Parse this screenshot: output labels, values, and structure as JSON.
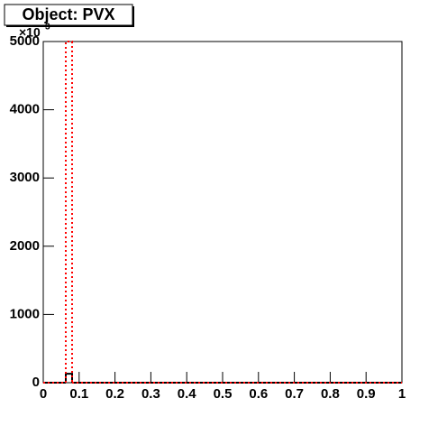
{
  "chart_data": {
    "type": "histogram",
    "title": "Object: PVX",
    "y_multiplier": {
      "base": "×10",
      "exponent": "3"
    },
    "bins": [
      0,
      0.0628,
      0.0804,
      1
    ],
    "series": [
      {
        "color": "#000000",
        "style": "solid",
        "values": [
          0,
          130,
          0
        ]
      },
      {
        "color": "#ff0000",
        "style": "dotted",
        "values": [
          0,
          5000,
          0
        ]
      }
    ],
    "xlim": [
      0,
      1
    ],
    "xticks": [
      0,
      0.1,
      0.2,
      0.3,
      0.4,
      0.5,
      0.6,
      0.7,
      0.8,
      0.9,
      1
    ],
    "ylim": [
      0,
      5000
    ],
    "yticks": [
      0,
      1000,
      2000,
      3000,
      4000,
      5000
    ]
  }
}
